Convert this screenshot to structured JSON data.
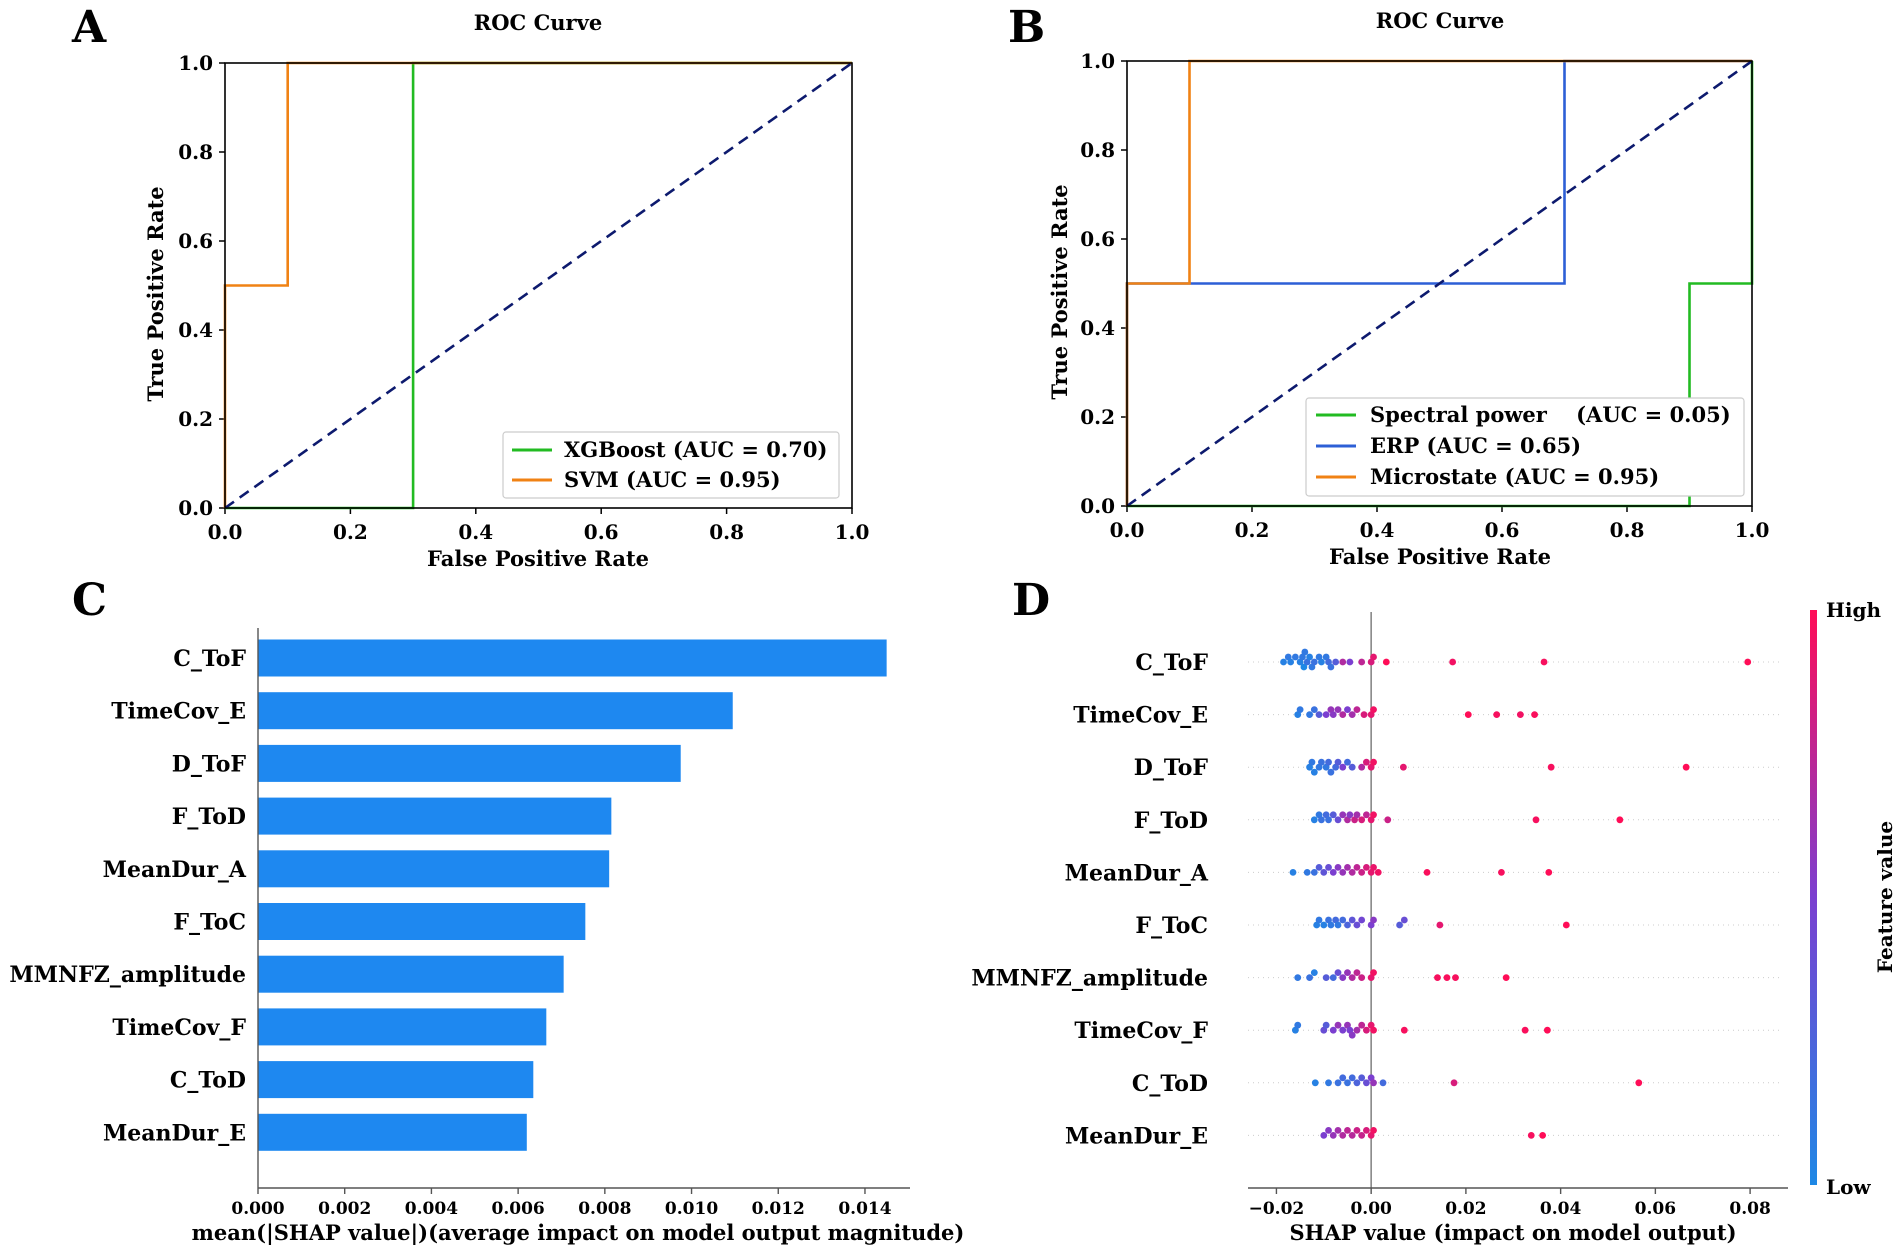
{
  "panel_labels": [
    "A",
    "B",
    "C",
    "D"
  ],
  "colors": {
    "green": "#22bb22",
    "orange": "#f08214",
    "blue": "#2d5fd6",
    "navy": "#0d1a6e",
    "bar": "#1e88f0",
    "shap_low": "#1e88e5",
    "shap_high": "#ff0d57"
  },
  "chart_data": [
    {
      "panel": "A",
      "type": "line",
      "title": "ROC Curve",
      "xlabel": "False Positive Rate",
      "ylabel": "True Positive Rate",
      "xlim": [
        0,
        1
      ],
      "ylim": [
        0,
        1
      ],
      "xticks": [
        "0.0",
        "0.2",
        "0.4",
        "0.6",
        "0.8",
        "1.0"
      ],
      "yticks": [
        "0.0",
        "0.2",
        "0.4",
        "0.6",
        "0.8",
        "1.0"
      ],
      "legend_position": "lower-right",
      "series": [
        {
          "name": "XGBoost (AUC = 0.70)",
          "color": "#22bb22",
          "x": [
            0,
            0.3,
            0.3,
            1.0
          ],
          "y": [
            0,
            0,
            1.0,
            1.0
          ]
        },
        {
          "name": "SVM (AUC = 0.95)",
          "color": "#f08214",
          "x": [
            0,
            0,
            0.1,
            0.1,
            1.0
          ],
          "y": [
            0,
            0.5,
            0.5,
            1.0,
            1.0
          ]
        }
      ],
      "diagonal": true
    },
    {
      "panel": "B",
      "type": "line",
      "title": "ROC Curve",
      "xlabel": "False Positive Rate",
      "ylabel": "True Positive Rate",
      "xlim": [
        0,
        1
      ],
      "ylim": [
        0,
        1
      ],
      "xticks": [
        "0.0",
        "0.2",
        "0.4",
        "0.6",
        "0.8",
        "1.0"
      ],
      "yticks": [
        "0.0",
        "0.2",
        "0.4",
        "0.6",
        "0.8",
        "1.0"
      ],
      "legend_position": "lower-right",
      "series": [
        {
          "name": "Spectral power    (AUC = 0.05)",
          "color": "#22bb22",
          "x": [
            0,
            0.9,
            0.9,
            1.0,
            1.0
          ],
          "y": [
            0,
            0,
            0.5,
            0.5,
            1.0
          ]
        },
        {
          "name": "ERP (AUC = 0.65)",
          "color": "#2d5fd6",
          "x": [
            0,
            0,
            0.7,
            0.7,
            1.0
          ],
          "y": [
            0,
            0.5,
            0.5,
            1.0,
            1.0
          ]
        },
        {
          "name": "Microstate (AUC = 0.95)",
          "color": "#f08214",
          "x": [
            0,
            0,
            0.1,
            0.1,
            1.0
          ],
          "y": [
            0,
            0.5,
            0.5,
            1.0,
            1.0
          ]
        }
      ],
      "diagonal": true
    },
    {
      "panel": "C",
      "type": "bar",
      "orientation": "horizontal",
      "xlabel": "mean(|SHAP value|)(average impact on model output magnitude)",
      "xlim": [
        0,
        0.0155
      ],
      "xticks": [
        "0.000",
        "0.002",
        "0.004",
        "0.006",
        "0.008",
        "0.010",
        "0.012",
        "0.014"
      ],
      "categories": [
        "C_ToF",
        "TimeCov_E",
        "D_ToF",
        "F_ToD",
        "MeanDur_A",
        "F_ToC",
        "MMNFZ_amplitude",
        "TimeCov_F",
        "C_ToD",
        "MeanDur_E"
      ],
      "values": [
        0.0145,
        0.01095,
        0.00975,
        0.00815,
        0.0081,
        0.00755,
        0.00705,
        0.00665,
        0.00635,
        0.0062
      ]
    },
    {
      "panel": "D",
      "type": "scatter",
      "subtype": "shap_beeswarm",
      "xlabel": "SHAP value (impact on model output)",
      "xlim": [
        -0.026,
        0.088
      ],
      "xticks": [
        "−0.02",
        "0.00",
        "0.02",
        "0.04",
        "0.06",
        "0.08"
      ],
      "colorbar": {
        "label": "Feature value",
        "high": "High",
        "low": "Low"
      },
      "categories": [
        "C_ToF",
        "TimeCov_E",
        "D_ToF",
        "F_ToD",
        "MeanDur_A",
        "F_ToC",
        "MMNFZ_amplitude",
        "TimeCov_F",
        "C_ToD",
        "MeanDur_E"
      ],
      "points": [
        [
          [
            -0.0185,
            0.05
          ],
          [
            -0.0175,
            0.1
          ],
          [
            -0.017,
            0.05
          ],
          [
            -0.016,
            0.1
          ],
          [
            -0.015,
            0.05
          ],
          [
            -0.0145,
            0.1
          ],
          [
            -0.0142,
            0.0
          ],
          [
            -0.014,
            0.1
          ],
          [
            -0.0135,
            0.15
          ],
          [
            -0.013,
            0.05
          ],
          [
            -0.0125,
            0.1
          ],
          [
            -0.012,
            0.15
          ],
          [
            -0.011,
            0.1
          ],
          [
            -0.0105,
            0.05
          ],
          [
            -0.0095,
            0.1
          ],
          [
            -0.009,
            0.2
          ],
          [
            -0.0085,
            0.15
          ],
          [
            -0.0075,
            0.3
          ],
          [
            -0.006,
            0.7
          ],
          [
            -0.0045,
            0.5
          ],
          [
            -0.002,
            0.75
          ],
          [
            0.0,
            0.85
          ],
          [
            0.0005,
            0.9
          ],
          [
            0.0032,
            1.0
          ],
          [
            0.0172,
            0.95
          ],
          [
            0.0365,
            0.97
          ],
          [
            0.0795,
            1.0
          ]
        ],
        [
          [
            -0.0155,
            0.05
          ],
          [
            -0.015,
            0.1
          ],
          [
            -0.013,
            0.1
          ],
          [
            -0.012,
            0.15
          ],
          [
            -0.011,
            0.3
          ],
          [
            -0.0095,
            0.5
          ],
          [
            -0.0085,
            0.6
          ],
          [
            -0.008,
            0.55
          ],
          [
            -0.007,
            0.6
          ],
          [
            -0.006,
            0.7
          ],
          [
            -0.005,
            0.5
          ],
          [
            -0.004,
            0.65
          ],
          [
            -0.003,
            0.75
          ],
          [
            -0.0015,
            0.85
          ],
          [
            0.0,
            0.9
          ],
          [
            0.0005,
            0.95
          ],
          [
            0.0205,
            1.0
          ],
          [
            0.0265,
            0.97
          ],
          [
            0.0315,
            0.95
          ],
          [
            0.0345,
            0.98
          ]
        ],
        [
          [
            -0.013,
            0.05
          ],
          [
            -0.0125,
            0.1
          ],
          [
            -0.012,
            0.05
          ],
          [
            -0.011,
            0.1
          ],
          [
            -0.0105,
            0.15
          ],
          [
            -0.0095,
            0.1
          ],
          [
            -0.009,
            0.2
          ],
          [
            -0.0085,
            0.15
          ],
          [
            -0.0075,
            0.2
          ],
          [
            -0.007,
            0.3
          ],
          [
            -0.006,
            0.5
          ],
          [
            -0.005,
            0.2
          ],
          [
            -0.004,
            0.3
          ],
          [
            -0.002,
            0.7
          ],
          [
            -0.001,
            0.85
          ],
          [
            0.0,
            0.9
          ],
          [
            0.0005,
            0.95
          ],
          [
            0.0068,
            0.9
          ],
          [
            0.038,
            0.97
          ],
          [
            0.0665,
            1.0
          ]
        ],
        [
          [
            -0.012,
            0.05
          ],
          [
            -0.011,
            0.1
          ],
          [
            -0.0105,
            0.15
          ],
          [
            -0.0095,
            0.2
          ],
          [
            -0.009,
            0.15
          ],
          [
            -0.008,
            0.3
          ],
          [
            -0.007,
            0.4
          ],
          [
            -0.006,
            0.6
          ],
          [
            -0.005,
            0.7
          ],
          [
            -0.0045,
            0.55
          ],
          [
            -0.0035,
            0.8
          ],
          [
            -0.003,
            0.65
          ],
          [
            -0.002,
            0.85
          ],
          [
            -0.001,
            0.75
          ],
          [
            0.0,
            0.9
          ],
          [
            0.0005,
            0.95
          ],
          [
            0.0035,
            0.8
          ],
          [
            0.0348,
            0.97
          ],
          [
            0.0525,
            1.0
          ]
        ],
        [
          [
            -0.0165,
            0.05
          ],
          [
            -0.0135,
            0.1
          ],
          [
            -0.012,
            0.15
          ],
          [
            -0.011,
            0.3
          ],
          [
            -0.01,
            0.35
          ],
          [
            -0.009,
            0.4
          ],
          [
            -0.008,
            0.5
          ],
          [
            -0.007,
            0.55
          ],
          [
            -0.006,
            0.6
          ],
          [
            -0.005,
            0.65
          ],
          [
            -0.004,
            0.7
          ],
          [
            -0.003,
            0.75
          ],
          [
            -0.002,
            0.8
          ],
          [
            -0.001,
            0.85
          ],
          [
            0.0,
            0.9
          ],
          [
            0.0005,
            0.92
          ],
          [
            0.0015,
            0.95
          ],
          [
            0.0118,
            0.98
          ],
          [
            0.0275,
            0.97
          ],
          [
            0.0375,
            1.0
          ]
        ],
        [
          [
            -0.0115,
            0.05
          ],
          [
            -0.011,
            0.1
          ],
          [
            -0.01,
            0.05
          ],
          [
            -0.009,
            0.15
          ],
          [
            -0.0085,
            0.1
          ],
          [
            -0.0075,
            0.2
          ],
          [
            -0.007,
            0.1
          ],
          [
            -0.006,
            0.2
          ],
          [
            -0.005,
            0.25
          ],
          [
            -0.004,
            0.35
          ],
          [
            -0.003,
            0.4
          ],
          [
            -0.002,
            0.45
          ],
          [
            0.0,
            0.5
          ],
          [
            0.0005,
            0.55
          ],
          [
            0.006,
            0.3
          ],
          [
            0.007,
            0.4
          ],
          [
            0.0145,
            0.9
          ],
          [
            0.0412,
            1.0
          ]
        ],
        [
          [
            -0.0155,
            0.1
          ],
          [
            -0.013,
            0.15
          ],
          [
            -0.012,
            0.05
          ],
          [
            -0.0095,
            0.3
          ],
          [
            -0.008,
            0.2
          ],
          [
            -0.007,
            0.4
          ],
          [
            -0.006,
            0.55
          ],
          [
            -0.005,
            0.6
          ],
          [
            -0.004,
            0.7
          ],
          [
            -0.003,
            0.75
          ],
          [
            -0.002,
            0.8
          ],
          [
            0.0,
            0.9
          ],
          [
            0.0005,
            0.95
          ],
          [
            0.014,
            0.97
          ],
          [
            0.016,
            0.98
          ],
          [
            0.0178,
            0.97
          ],
          [
            0.0285,
            1.0
          ]
        ],
        [
          [
            -0.016,
            0.05
          ],
          [
            -0.0155,
            0.1
          ],
          [
            -0.01,
            0.4
          ],
          [
            -0.0095,
            0.3
          ],
          [
            -0.008,
            0.5
          ],
          [
            -0.007,
            0.6
          ],
          [
            -0.006,
            0.5
          ],
          [
            -0.005,
            0.6
          ],
          [
            -0.0045,
            0.5
          ],
          [
            -0.004,
            0.55
          ],
          [
            -0.003,
            0.65
          ],
          [
            -0.002,
            0.75
          ],
          [
            -0.001,
            0.85
          ],
          [
            0.0,
            0.9
          ],
          [
            0.0005,
            0.95
          ],
          [
            0.007,
            0.97
          ],
          [
            0.0325,
            0.98
          ],
          [
            0.0372,
            1.0
          ]
        ],
        [
          [
            -0.0118,
            0.05
          ],
          [
            -0.009,
            0.1
          ],
          [
            -0.007,
            0.15
          ],
          [
            -0.006,
            0.2
          ],
          [
            -0.005,
            0.15
          ],
          [
            -0.004,
            0.2
          ],
          [
            -0.003,
            0.25
          ],
          [
            -0.002,
            0.3
          ],
          [
            -0.001,
            0.4
          ],
          [
            0.0,
            0.5
          ],
          [
            0.0005,
            0.6
          ],
          [
            0.0025,
            0.2
          ],
          [
            0.0175,
            0.85
          ],
          [
            0.0565,
            1.0
          ]
        ],
        [
          [
            -0.01,
            0.5
          ],
          [
            -0.009,
            0.55
          ],
          [
            -0.008,
            0.6
          ],
          [
            -0.007,
            0.65
          ],
          [
            -0.006,
            0.7
          ],
          [
            -0.005,
            0.75
          ],
          [
            -0.004,
            0.72
          ],
          [
            -0.003,
            0.8
          ],
          [
            -0.002,
            0.78
          ],
          [
            -0.001,
            0.85
          ],
          [
            0.0,
            0.9
          ],
          [
            0.0005,
            0.95
          ],
          [
            0.0338,
            0.97
          ],
          [
            0.0362,
            1.0
          ]
        ]
      ]
    }
  ]
}
